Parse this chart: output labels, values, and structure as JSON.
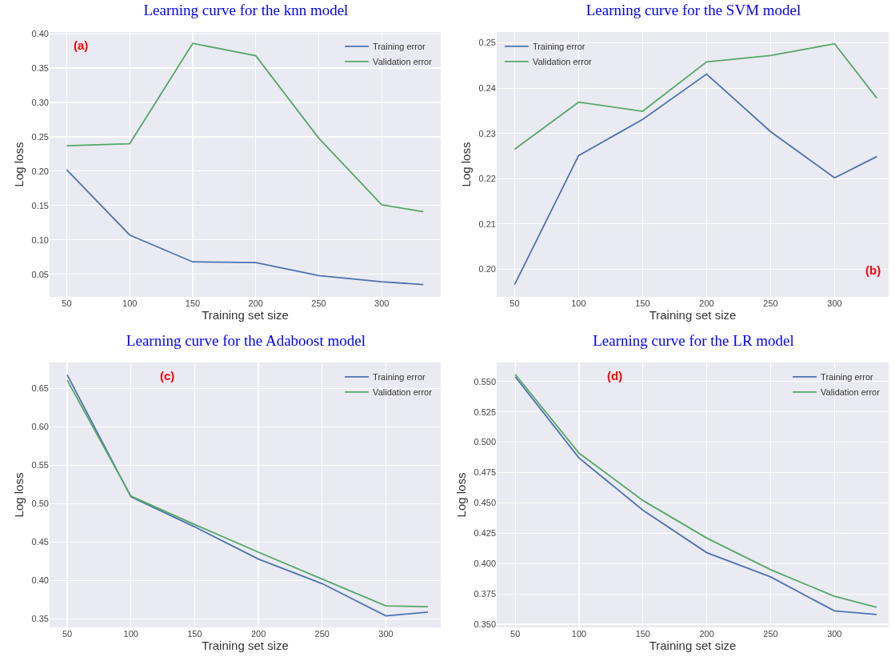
{
  "chart_data": [
    {
      "type": "line",
      "title": "Learning curve for the knn model",
      "xlabel": "Training set size",
      "ylabel": "Log loss",
      "annotations": [
        "(a)"
      ],
      "x": [
        50,
        100,
        150,
        200,
        250,
        300,
        333
      ],
      "xlim": [
        36.4,
        346.8
      ],
      "xticks": [
        50,
        100,
        150,
        200,
        250,
        300
      ],
      "ylim": [
        0.017,
        0.4025
      ],
      "yticks": [
        {
          "value": 0.05,
          "label": "0.05"
        },
        {
          "value": 0.1,
          "label": "0.10"
        },
        {
          "value": 0.15,
          "label": "0.15"
        },
        {
          "value": 0.2,
          "label": "0.20"
        },
        {
          "value": 0.25,
          "label": "0.25"
        },
        {
          "value": 0.3,
          "label": "0.30"
        },
        {
          "value": 0.35,
          "label": "0.35"
        },
        {
          "value": 0.4,
          "label": "0.40"
        }
      ],
      "grid": true,
      "legend": "top right",
      "series": [
        {
          "name": "Training error",
          "color": "#4c72b0",
          "values": [
            0.202,
            0.107,
            0.068,
            0.067,
            0.048,
            0.039,
            0.035
          ]
        },
        {
          "name": "Validation error",
          "color": "#55a868",
          "values": [
            0.237,
            0.24,
            0.386,
            0.368,
            0.248,
            0.151,
            0.141
          ]
        }
      ]
    },
    {
      "type": "line",
      "title": "Learning curve for the SVM model",
      "xlabel": "Training set size",
      "ylabel": "Log loss",
      "annotations": [
        "(b)"
      ],
      "x": [
        50,
        100,
        150,
        200,
        250,
        300,
        333
      ],
      "xlim": [
        36,
        342.2
      ],
      "xticks": [
        50,
        100,
        150,
        200,
        250,
        300
      ],
      "ylim": [
        0.1939,
        0.2524
      ],
      "yticks": [
        {
          "value": 0.2,
          "label": "0.20"
        },
        0.21,
        0.22,
        0.23,
        0.24,
        0.25
      ],
      "grid": true,
      "legend": "top left",
      "series": [
        {
          "name": "Training error",
          "color": "#4c72b0",
          "values": [
            0.1966,
            0.2251,
            0.2331,
            0.2431,
            0.2304,
            0.2202,
            0.2249
          ]
        },
        {
          "name": "Validation error",
          "color": "#55a868",
          "values": [
            0.2265,
            0.2369,
            0.2349,
            0.2458,
            0.2472,
            0.2498,
            0.2378
          ]
        }
      ]
    },
    {
      "type": "line",
      "title": "Learning curve for the Adaboost model",
      "xlabel": "Training set size",
      "ylabel": "Log loss",
      "annotations": [
        "(c)"
      ],
      "x": [
        50,
        100,
        150,
        200,
        250,
        300,
        333
      ],
      "xlim": [
        36.2,
        343
      ],
      "xticks": [
        50,
        100,
        150,
        200,
        250,
        300
      ],
      "ylim": [
        0.339,
        0.684
      ],
      "yticks": [
        0.35,
        {
          "value": 0.4,
          "label": "0.40"
        },
        0.45,
        {
          "value": 0.5,
          "label": "0.50"
        },
        0.55,
        {
          "value": 0.6,
          "label": "0.60"
        },
        0.65
      ],
      "grid": true,
      "legend": "top right",
      "series": [
        {
          "name": "Training error",
          "color": "#4c72b0",
          "values": [
            0.668,
            0.509,
            0.47,
            0.428,
            0.396,
            0.354,
            0.359
          ]
        },
        {
          "name": "Validation error",
          "color": "#55a868",
          "values": [
            0.661,
            0.51,
            0.473,
            0.437,
            0.402,
            0.367,
            0.366
          ]
        }
      ]
    },
    {
      "type": "line",
      "title": "Learning curve for the LR model",
      "xlabel": "Training set size",
      "ylabel": "Log loss",
      "annotations": [
        "(d)"
      ],
      "x": [
        50,
        100,
        150,
        200,
        250,
        300,
        333
      ],
      "xlim": [
        35.5,
        342.4
      ],
      "xticks": [
        50,
        100,
        150,
        200,
        250,
        300
      ],
      "ylim": [
        0.3474,
        0.5657
      ],
      "yticks": [
        {
          "value": 0.35,
          "label": "0.350"
        },
        0.375,
        {
          "value": 0.4,
          "label": "0.400"
        },
        0.425,
        {
          "value": 0.45,
          "label": "0.450"
        },
        0.475,
        {
          "value": 0.5,
          "label": "0.500"
        },
        0.525,
        {
          "value": 0.55,
          "label": "0.550"
        }
      ],
      "grid": true,
      "legend": "top right",
      "series": [
        {
          "name": "Training error",
          "color": "#4c72b0",
          "values": [
            0.554,
            0.487,
            0.444,
            0.409,
            0.389,
            0.361,
            0.358
          ]
        },
        {
          "name": "Validation error",
          "color": "#55a868",
          "values": [
            0.556,
            0.491,
            0.452,
            0.421,
            0.395,
            0.373,
            0.364
          ]
        }
      ]
    }
  ]
}
